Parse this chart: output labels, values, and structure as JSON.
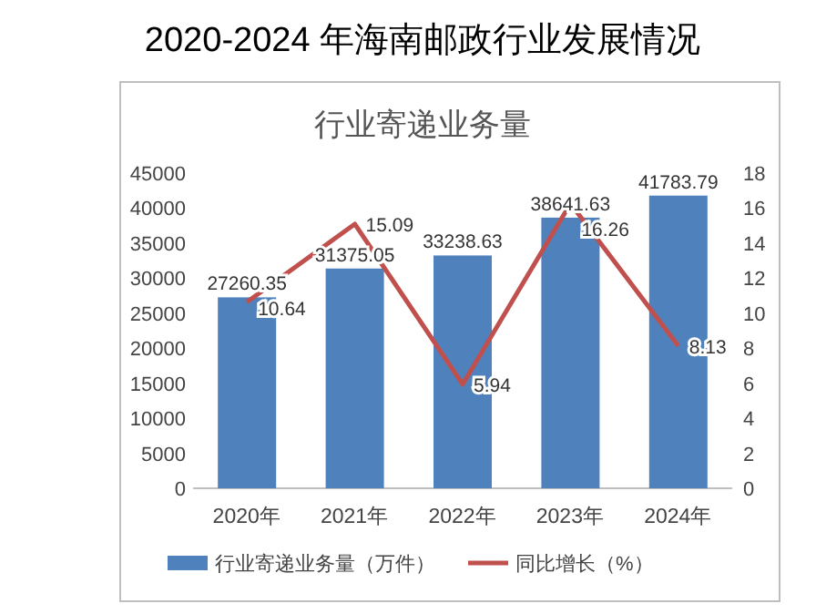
{
  "chart_data": {
    "type": "bar",
    "title": "2020-2024 年海南邮政行业发展情况",
    "subtitle": "行业寄递业务量",
    "categories": [
      "2020年",
      "2021年",
      "2022年",
      "2023年",
      "2024年"
    ],
    "series": [
      {
        "name": "行业寄递业务量（万件）",
        "color": "#4f81bd",
        "values": [
          27260.35,
          31375.05,
          33238.63,
          38641.63,
          41783.79
        ]
      },
      {
        "name": "同比增长（%）",
        "type": "line",
        "axis": "y2",
        "color": "#c0504d",
        "values": [
          10.64,
          15.09,
          5.94,
          16.26,
          8.13
        ]
      }
    ],
    "ylim": [
      0,
      45000
    ],
    "yticks": [
      0,
      5000,
      10000,
      15000,
      20000,
      25000,
      30000,
      35000,
      40000,
      45000
    ],
    "y2lim": [
      0,
      18
    ],
    "y2ticks": [
      0,
      2,
      4,
      6,
      8,
      10,
      12,
      14,
      16,
      18
    ],
    "data_labels": true,
    "legend": "bottom"
  }
}
